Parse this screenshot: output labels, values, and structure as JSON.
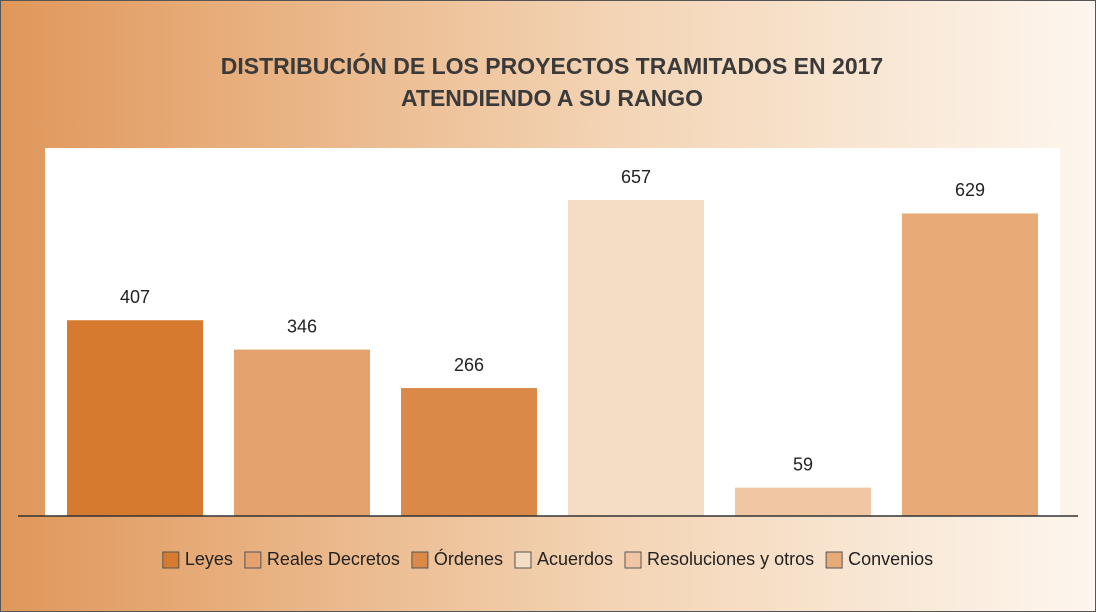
{
  "chart_data": {
    "type": "bar",
    "title": [
      "DISTRIBUCIÓN DE LOS PROYECTOS TRAMITADOS EN 2017",
      "ATENDIENDO A SU RANGO"
    ],
    "categories": [
      "Leyes",
      "Reales Decretos",
      "Órdenes",
      "Acuerdos",
      "Resoluciones y otros",
      "Convenios"
    ],
    "values": [
      407,
      346,
      266,
      657,
      59,
      629
    ],
    "colors": [
      "#d57a2e",
      "#e3a26e",
      "#db8948",
      "#f5dcc4",
      "#f0c7a2",
      "#e8aa76"
    ],
    "legend": "bottom"
  }
}
